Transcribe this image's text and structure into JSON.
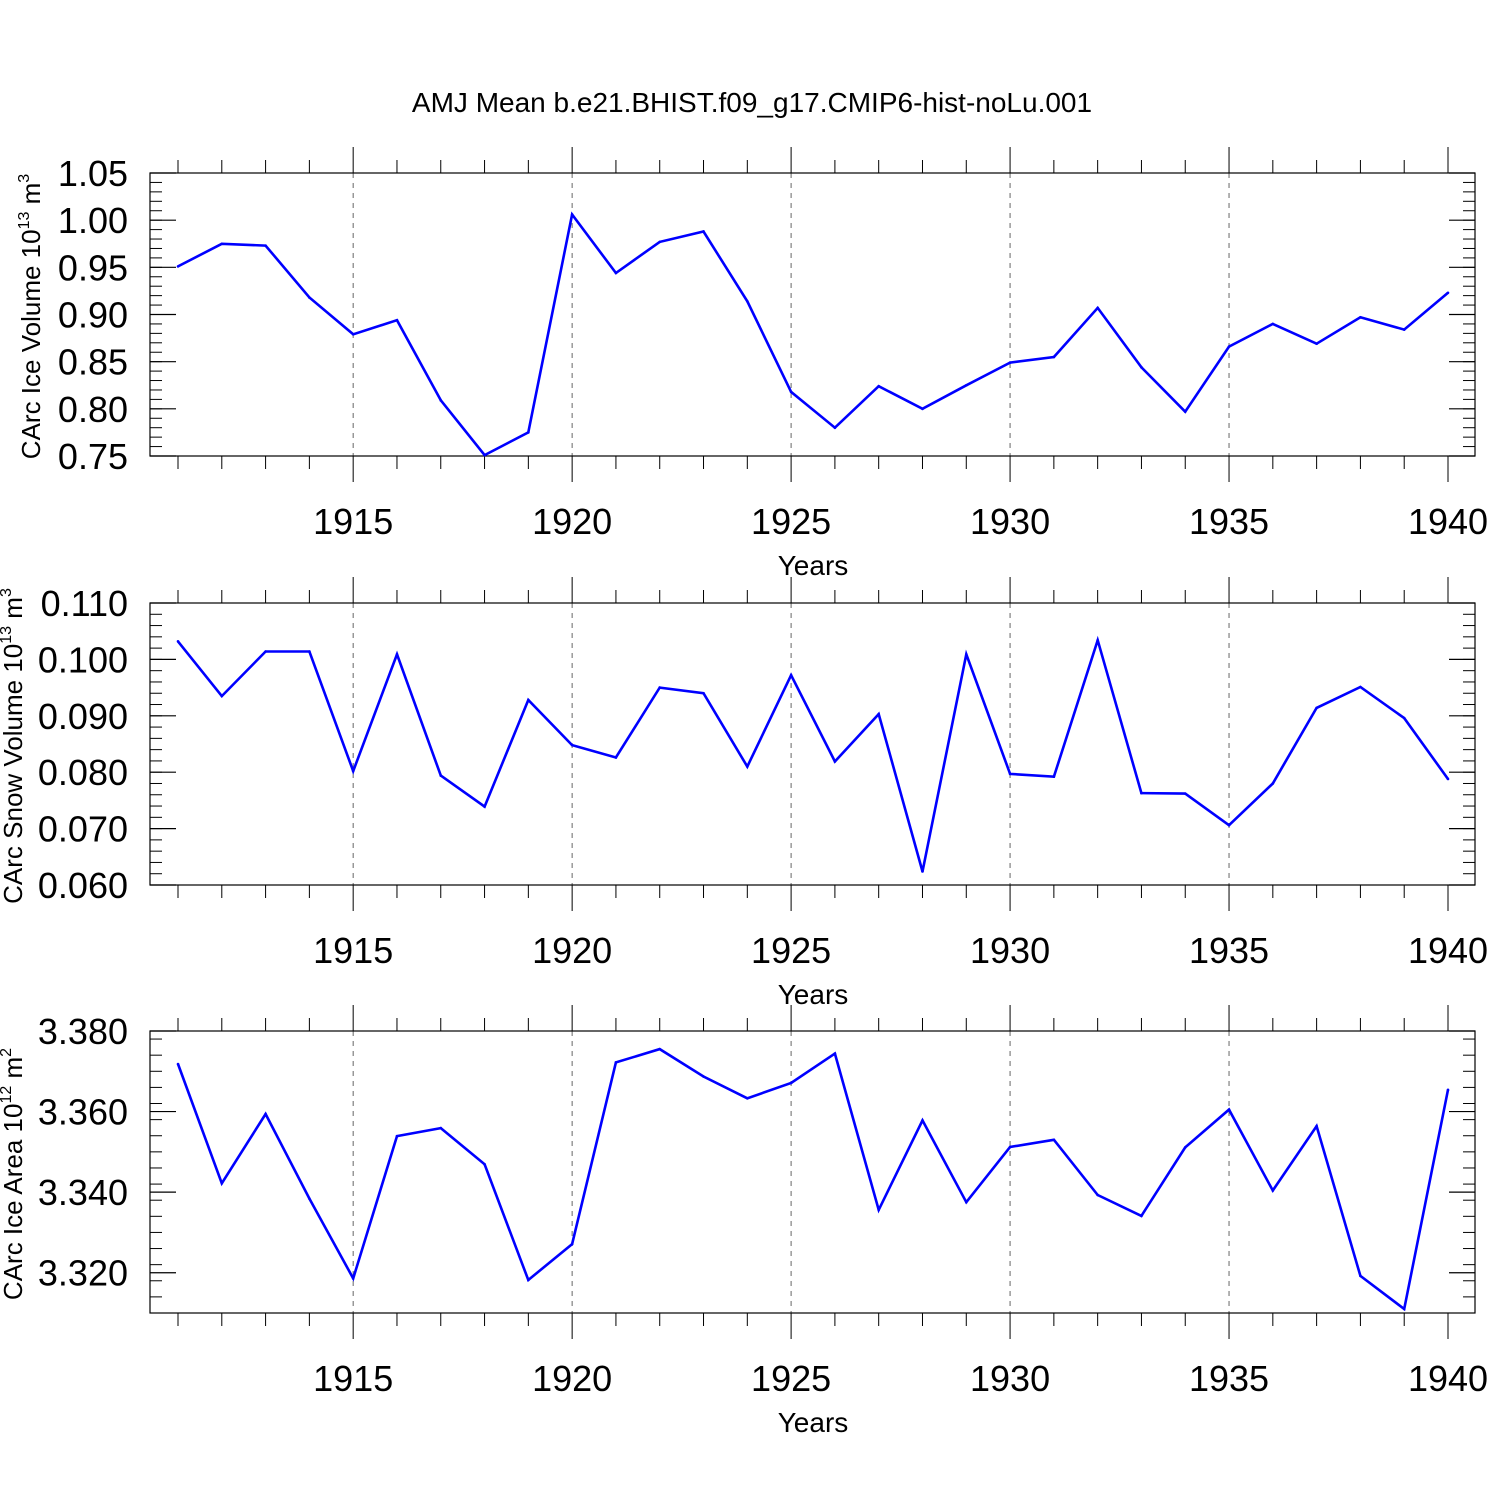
{
  "title": "AMJ Mean b.e21.BHIST.f09_g17.CMIP6-hist-noLu.001",
  "line_color": "#0000ff",
  "chart_data": [
    {
      "type": "line",
      "title": "",
      "xlabel": "Years",
      "ylabel": "CArc Ice Volume 10",
      "ylabel_sup": "13",
      "ylabel_unit": "m",
      "ylabel_unit_sup": "3",
      "xlim": [
        1911,
        1940
      ],
      "ylim": [
        0.75,
        1.05
      ],
      "grid": "dashed vertical at major x ticks",
      "xticks": [
        1915,
        1920,
        1925,
        1930,
        1935,
        1940
      ],
      "xtick_labels": [
        "1915",
        "1920",
        "1925",
        "1930",
        "1935",
        "1940"
      ],
      "yticks": [
        0.75,
        0.8,
        0.85,
        0.9,
        0.95,
        1.0,
        1.05
      ],
      "ytick_labels": [
        "0.75",
        "0.80",
        "0.85",
        "0.90",
        "0.95",
        "1.00",
        "1.05"
      ],
      "yminor_step": 0.01,
      "x": [
        1911,
        1912,
        1913,
        1914,
        1915,
        1916,
        1917,
        1918,
        1919,
        1920,
        1921,
        1922,
        1923,
        1924,
        1925,
        1926,
        1927,
        1928,
        1929,
        1930,
        1931,
        1932,
        1933,
        1934,
        1935,
        1936,
        1937,
        1938,
        1939,
        1940
      ],
      "series": [
        {
          "values": [
            0.951,
            0.975,
            0.973,
            0.918,
            0.879,
            0.894,
            0.809,
            0.751,
            0.775,
            1.006,
            0.944,
            0.977,
            0.988,
            0.914,
            0.818,
            0.78,
            0.824,
            0.8,
            0.825,
            0.849,
            0.855,
            0.907,
            0.844,
            0.797,
            0.866,
            0.89,
            0.869,
            0.897,
            0.884,
            0.923
          ]
        }
      ]
    },
    {
      "type": "line",
      "title": "",
      "xlabel": "Years",
      "ylabel": "CArc Snow Volume 10",
      "ylabel_sup": "13",
      "ylabel_unit": "m",
      "ylabel_unit_sup": "3",
      "xlim": [
        1911,
        1940
      ],
      "ylim": [
        0.06,
        0.11
      ],
      "grid": "dashed vertical at major x ticks",
      "xticks": [
        1915,
        1920,
        1925,
        1930,
        1935,
        1940
      ],
      "xtick_labels": [
        "1915",
        "1920",
        "1925",
        "1930",
        "1935",
        "1940"
      ],
      "yticks": [
        0.06,
        0.07,
        0.08,
        0.09,
        0.1,
        0.11
      ],
      "ytick_labels": [
        "0.060",
        "0.070",
        "0.080",
        "0.090",
        "0.100",
        "0.110"
      ],
      "yminor_step": 0.002,
      "x": [
        1911,
        1912,
        1913,
        1914,
        1915,
        1916,
        1917,
        1918,
        1919,
        1920,
        1921,
        1922,
        1923,
        1924,
        1925,
        1926,
        1927,
        1928,
        1929,
        1930,
        1931,
        1932,
        1933,
        1934,
        1935,
        1936,
        1937,
        1938,
        1939,
        1940
      ],
      "series": [
        {
          "values": [
            0.1032,
            0.0935,
            0.1014,
            0.1014,
            0.0802,
            0.1009,
            0.0794,
            0.0739,
            0.0928,
            0.0848,
            0.0826,
            0.095,
            0.094,
            0.081,
            0.0972,
            0.0819,
            0.0903,
            0.0624,
            0.1009,
            0.0797,
            0.0792,
            0.1034,
            0.0763,
            0.0762,
            0.0706,
            0.078,
            0.0914,
            0.0951,
            0.0896,
            0.0788
          ]
        }
      ]
    },
    {
      "type": "line",
      "title": "",
      "xlabel": "Years",
      "ylabel": "CArc Ice Area 10",
      "ylabel_sup": "12",
      "ylabel_unit": "m",
      "ylabel_unit_sup": "2",
      "xlim": [
        1911,
        1940
      ],
      "ylim": [
        3.31,
        3.38
      ],
      "grid": "dashed vertical at major x ticks",
      "xticks": [
        1915,
        1920,
        1925,
        1930,
        1935,
        1940
      ],
      "xtick_labels": [
        "1915",
        "1920",
        "1925",
        "1930",
        "1935",
        "1940"
      ],
      "yticks": [
        3.32,
        3.34,
        3.36,
        3.38
      ],
      "ytick_labels": [
        "3.320",
        "3.340",
        "3.360",
        "3.380"
      ],
      "yminor_step": 0.004,
      "x": [
        1911,
        1912,
        1913,
        1914,
        1915,
        1916,
        1917,
        1918,
        1919,
        1920,
        1921,
        1922,
        1923,
        1924,
        1925,
        1926,
        1927,
        1928,
        1929,
        1930,
        1931,
        1932,
        1933,
        1934,
        1935,
        1936,
        1937,
        1938,
        1939,
        1940
      ],
      "series": [
        {
          "values": [
            3.3718,
            3.3422,
            3.3594,
            3.3384,
            3.3186,
            3.3539,
            3.3559,
            3.3469,
            3.3182,
            3.3271,
            3.3722,
            3.3755,
            3.3687,
            3.3633,
            3.3671,
            3.3744,
            3.3356,
            3.3578,
            3.3375,
            3.3512,
            3.353,
            3.3393,
            3.3341,
            3.3511,
            3.3605,
            3.3404,
            3.3564,
            3.3192,
            3.311,
            3.3654
          ]
        }
      ]
    }
  ]
}
